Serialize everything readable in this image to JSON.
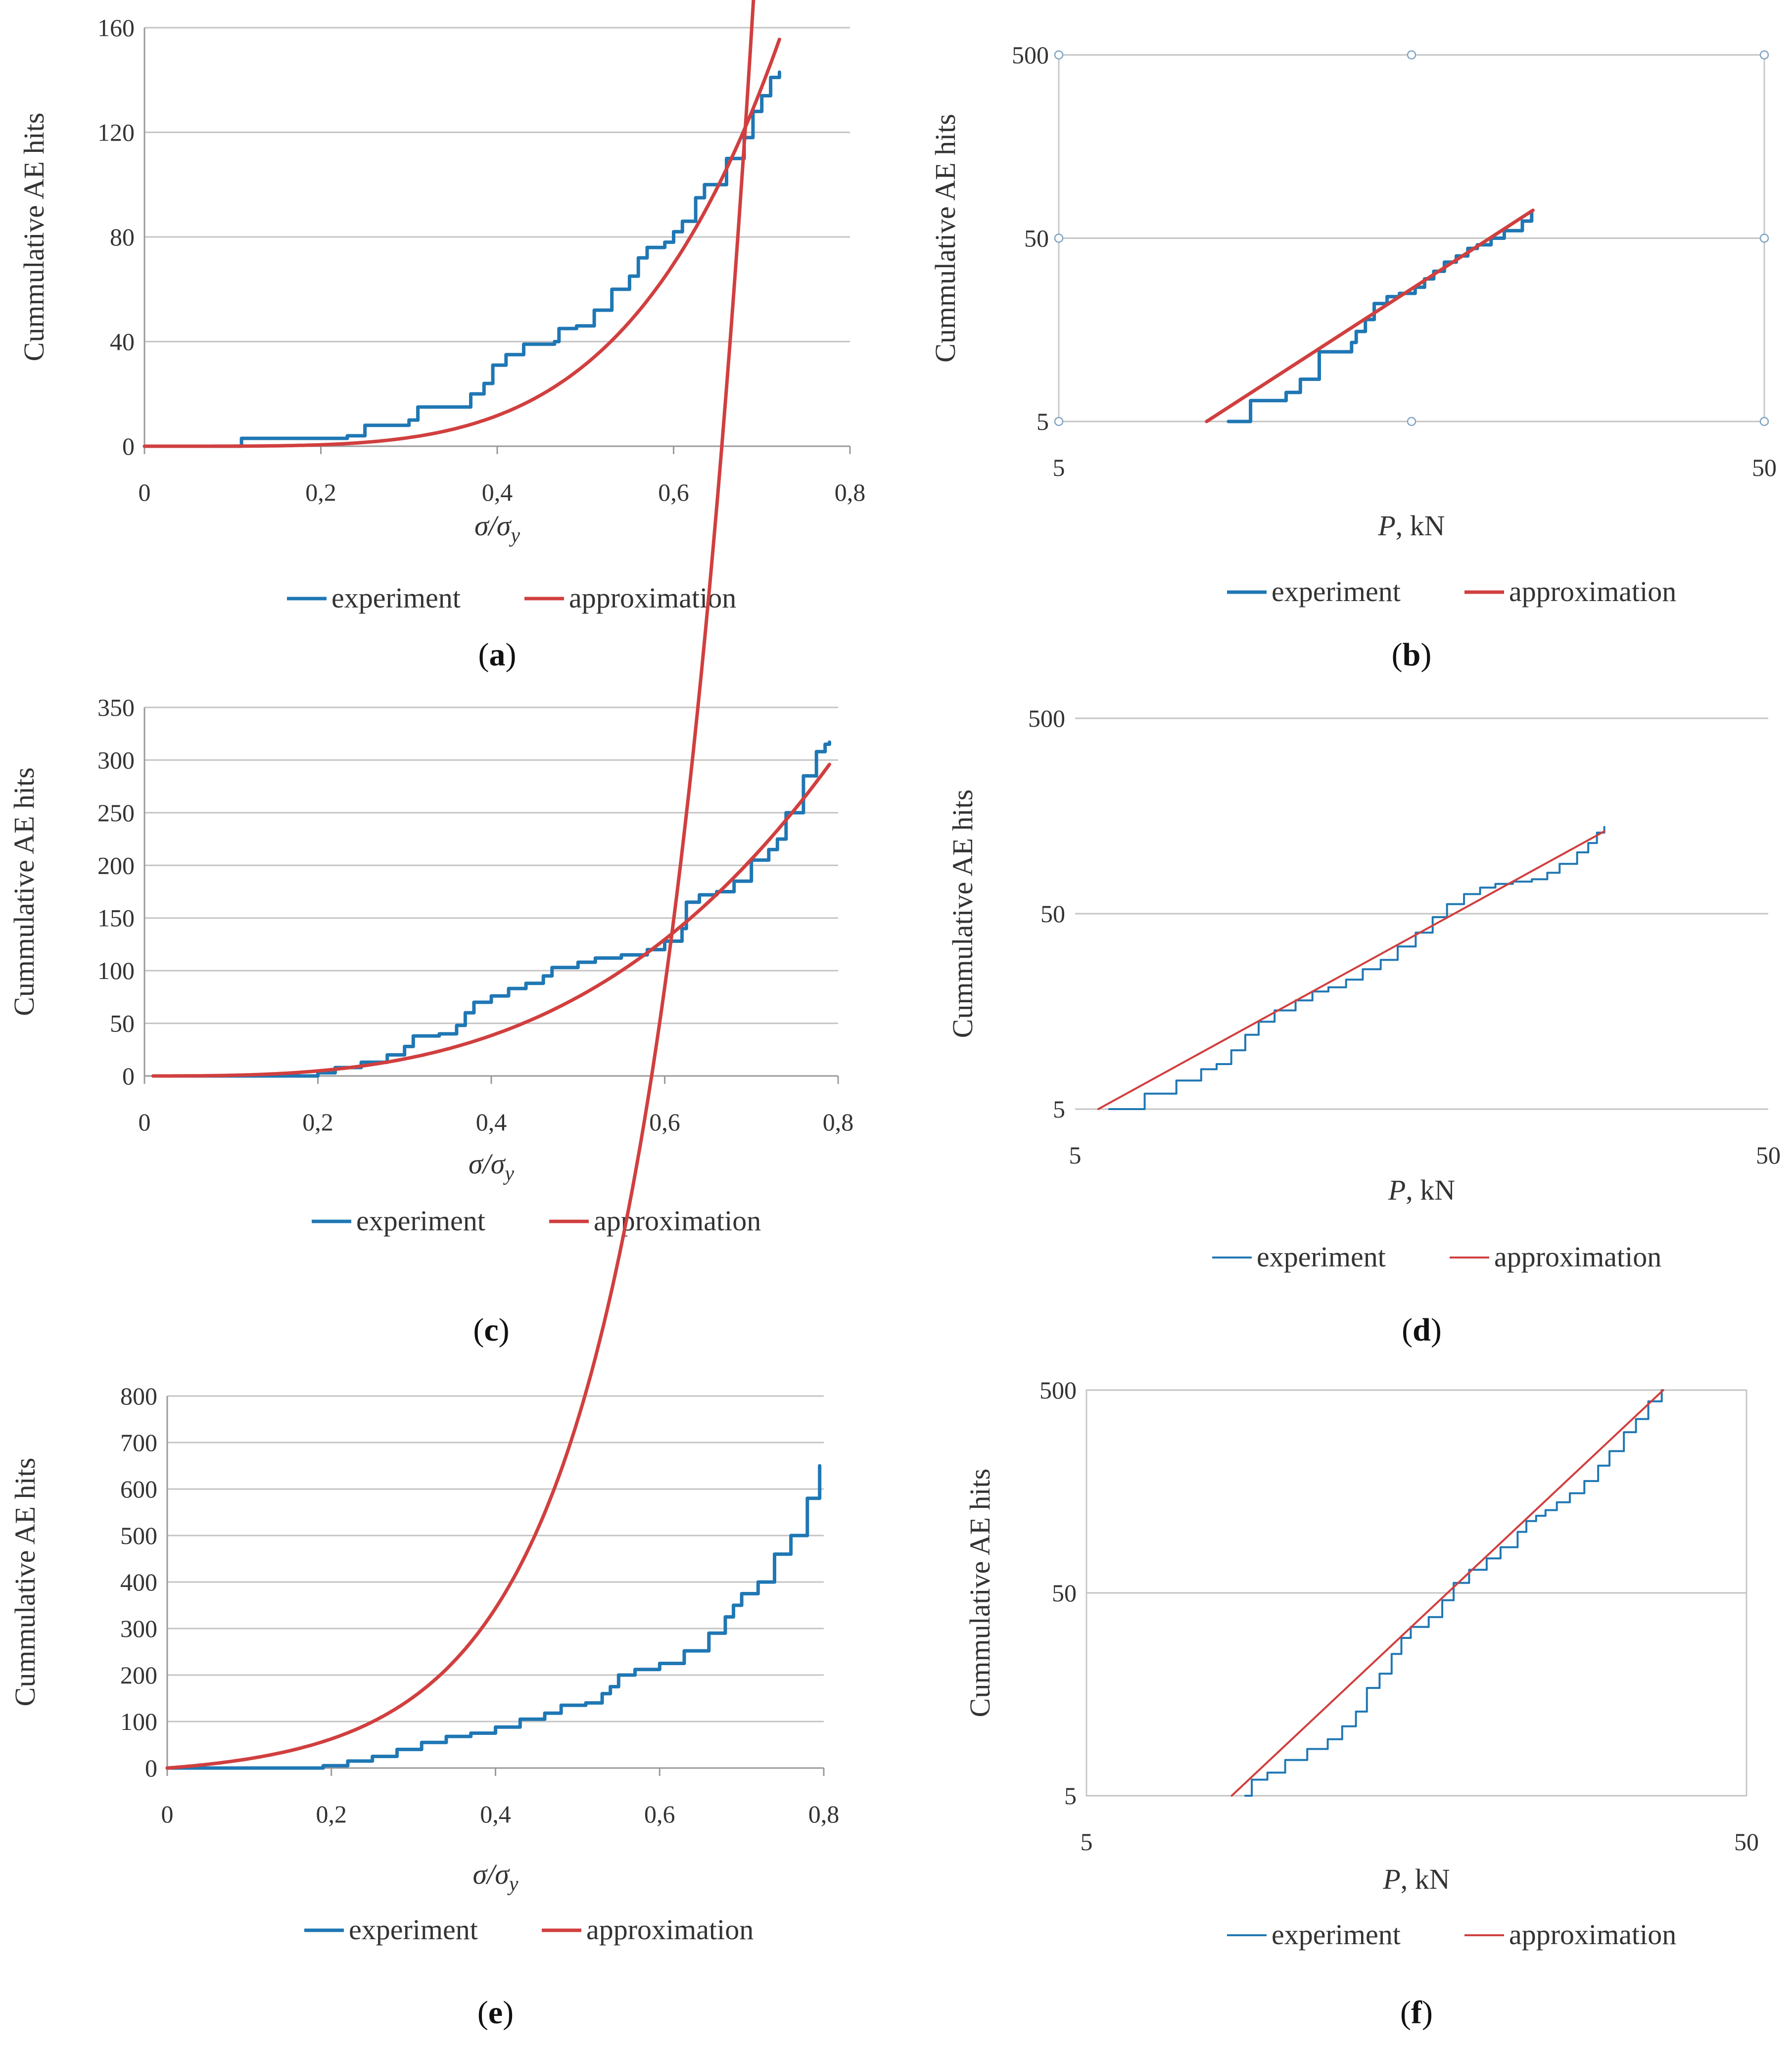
{
  "chart_data": [
    {
      "id": "a",
      "type": "line",
      "scale": "linear",
      "caption": "(a)",
      "caption_letter": "a",
      "ylabel": "Cummulative AE hits",
      "xlabel": "σ/σ",
      "xlabel_sub": "y",
      "xlim": [
        0,
        0.8
      ],
      "ylim": [
        0,
        160
      ],
      "xticks": [
        0,
        0.2,
        0.4,
        0.6,
        0.8
      ],
      "xtick_labels": [
        "0",
        "0,2",
        "0,4",
        "0,6",
        "0,8"
      ],
      "yticks": [
        0,
        40,
        80,
        120,
        160
      ],
      "ytick_labels": [
        "0",
        "40",
        "80",
        "120",
        "160"
      ],
      "hgrid": true,
      "frame": false,
      "legend": [
        "experiment",
        "approximation"
      ],
      "series": [
        {
          "name": "experiment",
          "color": "#1f77b4",
          "kind": "step",
          "points": [
            [
              0,
              0
            ],
            [
              0.1,
              0
            ],
            [
              0.11,
              3
            ],
            [
              0.2,
              3
            ],
            [
              0.23,
              4
            ],
            [
              0.25,
              8
            ],
            [
              0.29,
              8
            ],
            [
              0.3,
              10
            ],
            [
              0.31,
              15
            ],
            [
              0.36,
              15
            ],
            [
              0.37,
              20
            ],
            [
              0.385,
              24
            ],
            [
              0.395,
              31
            ],
            [
              0.41,
              35
            ],
            [
              0.43,
              39
            ],
            [
              0.465,
              40
            ],
            [
              0.47,
              45
            ],
            [
              0.49,
              46
            ],
            [
              0.51,
              52
            ],
            [
              0.53,
              60
            ],
            [
              0.55,
              65
            ],
            [
              0.56,
              72
            ],
            [
              0.57,
              76
            ],
            [
              0.59,
              78
            ],
            [
              0.6,
              82
            ],
            [
              0.61,
              86
            ],
            [
              0.625,
              95
            ],
            [
              0.635,
              100
            ],
            [
              0.65,
              100
            ],
            [
              0.66,
              110
            ],
            [
              0.68,
              118
            ],
            [
              0.69,
              128
            ],
            [
              0.7,
              134
            ],
            [
              0.71,
              141
            ],
            [
              0.72,
              143
            ]
          ]
        },
        {
          "name": "approximation",
          "color": "#d13f3f",
          "kind": "power",
          "a": 660,
          "b": 4.4,
          "xmax": 0.72
        }
      ]
    },
    {
      "id": "b",
      "type": "line",
      "scale": "loglog",
      "caption": "(b)",
      "caption_letter": "b",
      "ylabel": "Cummulative AE hits",
      "xlabel": "P",
      "xlabel_unit": ", kN",
      "xlim": [
        5,
        50
      ],
      "ylim": [
        5,
        500
      ],
      "xticks": [
        5,
        50
      ],
      "xtick_labels": [
        "5",
        "50"
      ],
      "yticks": [
        5,
        50,
        500
      ],
      "ytick_labels": [
        "5",
        "50",
        "500"
      ],
      "hgrid": true,
      "frame": true,
      "handles": true,
      "legend": [
        "experiment",
        "approximation"
      ],
      "series": [
        {
          "name": "experiment",
          "color": "#1f77b4",
          "kind": "step",
          "points": [
            [
              8.7,
              5
            ],
            [
              9.3,
              5
            ],
            [
              9.35,
              6.5
            ],
            [
              10.2,
              6.5
            ],
            [
              10.5,
              7.2
            ],
            [
              10.8,
              7.2
            ],
            [
              11.0,
              8.5
            ],
            [
              11.5,
              8.5
            ],
            [
              11.7,
              12
            ],
            [
              12.9,
              12
            ],
            [
              13.0,
              13.5
            ],
            [
              13.2,
              15.5
            ],
            [
              13.6,
              18
            ],
            [
              14.0,
              22
            ],
            [
              14.6,
              24
            ],
            [
              15.2,
              25
            ],
            [
              15.8,
              25
            ],
            [
              16.0,
              27
            ],
            [
              16.5,
              30
            ],
            [
              17.0,
              33
            ],
            [
              17.6,
              37
            ],
            [
              18.3,
              40
            ],
            [
              19.0,
              44
            ],
            [
              19.6,
              46
            ],
            [
              20.5,
              50
            ],
            [
              21.4,
              55
            ],
            [
              22.7,
              62
            ],
            [
              23.4,
              70
            ]
          ]
        },
        {
          "name": "approximation",
          "color": "#d13f3f",
          "kind": "loglinear",
          "from": [
            8.1,
            5
          ],
          "to": [
            23.5,
            71
          ]
        }
      ]
    },
    {
      "id": "c",
      "type": "line",
      "scale": "linear",
      "caption": "(c)",
      "caption_letter": "c",
      "ylabel": "Cummulative AE hits",
      "xlabel": "σ/σ",
      "xlabel_sub": "y",
      "xlim": [
        0,
        0.8
      ],
      "ylim": [
        0,
        350
      ],
      "xticks": [
        0,
        0.2,
        0.4,
        0.6,
        0.8
      ],
      "xtick_labels": [
        "0",
        "0,2",
        "0,4",
        "0,6",
        "0,8"
      ],
      "yticks": [
        0,
        50,
        100,
        150,
        200,
        250,
        300,
        350
      ],
      "ytick_labels": [
        "0",
        "50",
        "100",
        "150",
        "200",
        "250",
        "300",
        "350"
      ],
      "hgrid": true,
      "frame": false,
      "legend": [
        "experiment",
        "approximation"
      ],
      "series": [
        {
          "name": "experiment",
          "color": "#1f77b4",
          "kind": "step",
          "points": [
            [
              0.01,
              0
            ],
            [
              0.15,
              0
            ],
            [
              0.2,
              3
            ],
            [
              0.22,
              8
            ],
            [
              0.25,
              13
            ],
            [
              0.28,
              20
            ],
            [
              0.3,
              28
            ],
            [
              0.31,
              38
            ],
            [
              0.34,
              40
            ],
            [
              0.36,
              48
            ],
            [
              0.37,
              60
            ],
            [
              0.38,
              70
            ],
            [
              0.4,
              76
            ],
            [
              0.42,
              83
            ],
            [
              0.44,
              88
            ],
            [
              0.46,
              95
            ],
            [
              0.47,
              103
            ],
            [
              0.5,
              108
            ],
            [
              0.52,
              112
            ],
            [
              0.55,
              115
            ],
            [
              0.58,
              120
            ],
            [
              0.6,
              128
            ],
            [
              0.62,
              140
            ],
            [
              0.625,
              165
            ],
            [
              0.64,
              172
            ],
            [
              0.66,
              175
            ],
            [
              0.68,
              185
            ],
            [
              0.7,
              205
            ],
            [
              0.72,
              215
            ],
            [
              0.73,
              225
            ],
            [
              0.74,
              250
            ],
            [
              0.76,
              285
            ],
            [
              0.775,
              308
            ],
            [
              0.785,
              315
            ],
            [
              0.79,
              317
            ]
          ]
        },
        {
          "name": "approximation",
          "color": "#d13f3f",
          "kind": "power",
          "a": 600,
          "b": 3.0,
          "xmin": 0.01,
          "xmax": 0.79
        }
      ]
    },
    {
      "id": "d",
      "type": "line",
      "scale": "loglog",
      "caption": "(d)",
      "caption_letter": "d",
      "ylabel": "Cummulative AE hits",
      "xlabel": "P",
      "xlabel_unit": ", kN",
      "xlim": [
        5,
        50
      ],
      "ylim": [
        5,
        500
      ],
      "xticks": [
        5,
        50
      ],
      "xtick_labels": [
        "5",
        "50"
      ],
      "yticks": [
        5,
        50,
        500
      ],
      "ytick_labels": [
        "5",
        "50",
        "500"
      ],
      "hgrid": true,
      "frame": false,
      "legend": [
        "experiment",
        "approximation"
      ],
      "series": [
        {
          "name": "experiment",
          "color": "#1f77b4",
          "kind": "step",
          "points": [
            [
              5.6,
              5
            ],
            [
              6.2,
              5
            ],
            [
              6.3,
              6
            ],
            [
              6.9,
              6
            ],
            [
              7.0,
              7
            ],
            [
              7.5,
              7
            ],
            [
              7.6,
              8
            ],
            [
              8.0,
              8.5
            ],
            [
              8.4,
              10
            ],
            [
              8.8,
              12
            ],
            [
              9.2,
              14
            ],
            [
              9.7,
              16
            ],
            [
              10.4,
              18
            ],
            [
              11.0,
              20
            ],
            [
              11.6,
              21
            ],
            [
              12.3,
              23
            ],
            [
              13.0,
              26
            ],
            [
              13.8,
              29
            ],
            [
              14.6,
              34
            ],
            [
              15.5,
              40
            ],
            [
              16.4,
              48
            ],
            [
              17.2,
              56
            ],
            [
              18.2,
              63
            ],
            [
              19.2,
              68
            ],
            [
              20.2,
              71
            ],
            [
              21.4,
              73
            ],
            [
              22.8,
              75
            ],
            [
              24.0,
              81
            ],
            [
              25.0,
              90
            ],
            [
              26.5,
              103
            ],
            [
              27.5,
              115
            ],
            [
              28.3,
              130
            ],
            [
              29.0,
              139
            ]
          ]
        },
        {
          "name": "approximation",
          "color": "#d13f3f",
          "kind": "loglinear",
          "from": [
            5.4,
            5
          ],
          "to": [
            29.0,
            132
          ]
        }
      ]
    },
    {
      "id": "e",
      "type": "line",
      "scale": "linear",
      "caption": "(e)",
      "caption_letter": "e",
      "ylabel": "Cummulative AE hits",
      "xlabel": "σ/σ",
      "xlabel_sub": "y",
      "xlim": [
        0,
        0.8
      ],
      "ylim": [
        0,
        800
      ],
      "xticks": [
        0,
        0.2,
        0.4,
        0.6,
        0.8
      ],
      "xtick_labels": [
        "0",
        "0,2",
        "0,4",
        "0,6",
        "0,8"
      ],
      "yticks": [
        0,
        100,
        200,
        300,
        400,
        500,
        600,
        700,
        800
      ],
      "ytick_labels": [
        "0",
        "100",
        "200",
        "300",
        "400",
        "500",
        "600",
        "700",
        "800"
      ],
      "hgrid": true,
      "frame": false,
      "legend": [
        "experiment",
        "approximation"
      ],
      "series": [
        {
          "name": "experiment",
          "color": "#1f77b4",
          "kind": "step",
          "points": [
            [
              0,
              0
            ],
            [
              0.17,
              0
            ],
            [
              0.19,
              5
            ],
            [
              0.22,
              15
            ],
            [
              0.25,
              25
            ],
            [
              0.28,
              40
            ],
            [
              0.31,
              55
            ],
            [
              0.34,
              68
            ],
            [
              0.37,
              75
            ],
            [
              0.4,
              88
            ],
            [
              0.43,
              105
            ],
            [
              0.46,
              118
            ],
            [
              0.48,
              135
            ],
            [
              0.51,
              140
            ],
            [
              0.53,
              160
            ],
            [
              0.54,
              175
            ],
            [
              0.55,
              200
            ],
            [
              0.57,
              212
            ],
            [
              0.6,
              225
            ],
            [
              0.63,
              252
            ],
            [
              0.66,
              290
            ],
            [
              0.68,
              325
            ],
            [
              0.69,
              350
            ],
            [
              0.7,
              375
            ],
            [
              0.72,
              400
            ],
            [
              0.74,
              460
            ],
            [
              0.76,
              500
            ],
            [
              0.78,
              580
            ],
            [
              0.795,
              650
            ]
          ]
        },
        {
          "name": "approximation",
          "color": "#d13f3f",
          "kind": "expo",
          "a": 18.0,
          "b": 7.5,
          "c": -18.0,
          "xmax": 0.795
        }
      ]
    },
    {
      "id": "f",
      "type": "line",
      "scale": "loglog",
      "caption": "(f)",
      "caption_letter": "f",
      "ylabel": "Cummulative AE hits",
      "xlabel": "P",
      "xlabel_unit": ", kN",
      "xlim": [
        5,
        50
      ],
      "ylim": [
        5,
        500
      ],
      "xticks": [
        5,
        50
      ],
      "xtick_labels": [
        "5",
        "50"
      ],
      "yticks": [
        5,
        50,
        500
      ],
      "ytick_labels": [
        "5",
        "50",
        "500"
      ],
      "hgrid": true,
      "frame": true,
      "legend": [
        "experiment",
        "approximation"
      ],
      "series": [
        {
          "name": "experiment",
          "color": "#1f77b4",
          "kind": "step",
          "points": [
            [
              8.7,
              5
            ],
            [
              8.9,
              6
            ],
            [
              9.4,
              6.5
            ],
            [
              10.0,
              7.5
            ],
            [
              10.8,
              8.5
            ],
            [
              11.6,
              9.5
            ],
            [
              12.2,
              11
            ],
            [
              12.8,
              13
            ],
            [
              13.3,
              17
            ],
            [
              13.9,
              20
            ],
            [
              14.5,
              25
            ],
            [
              15.0,
              30
            ],
            [
              15.5,
              34
            ],
            [
              16.5,
              38
            ],
            [
              17.3,
              46
            ],
            [
              18.0,
              56
            ],
            [
              19.0,
              65
            ],
            [
              20.2,
              74
            ],
            [
              21.2,
              84
            ],
            [
              22.5,
              100
            ],
            [
              23.2,
              113
            ],
            [
              24.0,
              120
            ],
            [
              24.8,
              128
            ],
            [
              25.8,
              140
            ],
            [
              27.0,
              155
            ],
            [
              28.4,
              178
            ],
            [
              29.8,
              212
            ],
            [
              31.0,
              250
            ],
            [
              32.6,
              310
            ],
            [
              34.0,
              360
            ],
            [
              35.5,
              440
            ],
            [
              37.2,
              500
            ]
          ]
        },
        {
          "name": "approximation",
          "color": "#d13f3f",
          "kind": "loglinear",
          "from": [
            8.3,
            5
          ],
          "to": [
            37.4,
            500
          ]
        }
      ]
    }
  ]
}
